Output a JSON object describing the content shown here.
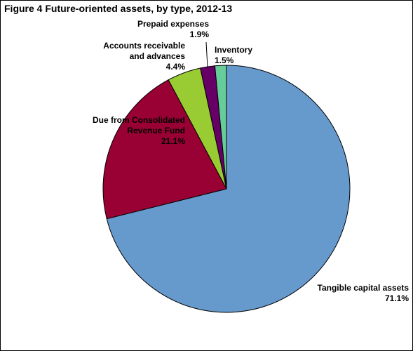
{
  "chart_data": {
    "type": "pie",
    "title": "Figure 4  Future-oriented assets, by type, 2012-13",
    "start": "12 o'clock",
    "direction": "clockwise",
    "slices": [
      {
        "label": "Tangible capital assets",
        "value": 71.1,
        "value_label": "71.1%",
        "color": "#6699CC"
      },
      {
        "label": "Due from Consolidated Revenue Fund",
        "value": 21.1,
        "value_label": "21.1%",
        "color": "#990033"
      },
      {
        "label": "Accounts receivable and advances",
        "value": 4.4,
        "value_label": "4.4%",
        "color": "#99CC33"
      },
      {
        "label": "Prepaid expenses",
        "value": 1.9,
        "value_label": "1.9%",
        "color": "#660066"
      },
      {
        "label": "Inventory",
        "value": 1.5,
        "value_label": "1.5%",
        "color": "#66CC99"
      }
    ]
  }
}
